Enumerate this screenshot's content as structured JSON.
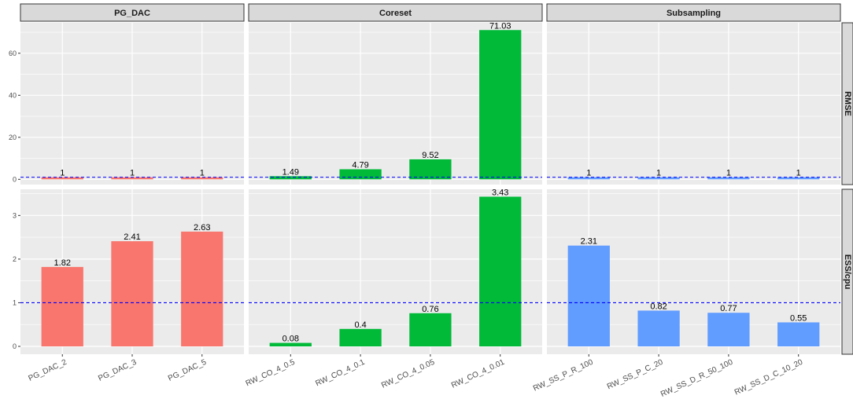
{
  "chart_data": {
    "type": "bar",
    "facets": {
      "columns": [
        "PG_DAC",
        "Coreset",
        "Subsampling"
      ],
      "rows": [
        "RMSE",
        "ESS/cpu"
      ]
    },
    "categories": {
      "PG_DAC": [
        "PG_DAC_2",
        "PG_DAC_3",
        "PG_DAC_5"
      ],
      "Coreset": [
        "RW_CO_4_0.5",
        "RW_CO_4_0.1",
        "RW_CO_4_0.05",
        "RW_CO_4_0.01"
      ],
      "Subsampling": [
        "RW_SS_P_R_100",
        "RW_SS_P_C_20",
        "RW_SS_D_R_50_100",
        "RW_SS_D_C_10_20"
      ]
    },
    "values": {
      "RMSE": {
        "PG_DAC": [
          1,
          1,
          1
        ],
        "Coreset": [
          1.49,
          4.79,
          9.52,
          71.03
        ],
        "Subsampling": [
          1,
          1,
          1,
          1
        ]
      },
      "ESS/cpu": {
        "PG_DAC": [
          1.82,
          2.41,
          2.63
        ],
        "Coreset": [
          0.08,
          0.4,
          0.76,
          3.43
        ],
        "Subsampling": [
          2.31,
          0.82,
          0.77,
          0.55
        ]
      }
    },
    "labels": {
      "RMSE": {
        "PG_DAC": [
          "1",
          "1",
          "1"
        ],
        "Coreset": [
          "1.49",
          "4.79",
          "9.52",
          "71.03"
        ],
        "Subsampling": [
          "1",
          "1",
          "1",
          "1"
        ]
      },
      "ESS/cpu": {
        "PG_DAC": [
          "1.82",
          "2.41",
          "2.63"
        ],
        "Coreset": [
          "0.08",
          "0.4",
          "0.76",
          "3.43"
        ],
        "Subsampling": [
          "2.31",
          "0.82",
          "0.77",
          "0.55"
        ]
      }
    },
    "reference_line": {
      "y": 1,
      "style": "dashed",
      "color": "#0000ff"
    },
    "ylim": {
      "RMSE": [
        -2.5,
        74.5
      ],
      "ESS/cpu": [
        -0.18,
        3.6
      ]
    },
    "yticks": {
      "RMSE": [
        0,
        20,
        40,
        60
      ],
      "ESS/cpu": [
        0,
        1,
        2,
        3
      ]
    },
    "colors": {
      "PG_DAC": "#f8766d",
      "Coreset": "#00ba38",
      "Subsampling": "#619cff"
    },
    "title": "",
    "xlabel": "",
    "ylabel": "",
    "grid": true,
    "legend": "none"
  }
}
